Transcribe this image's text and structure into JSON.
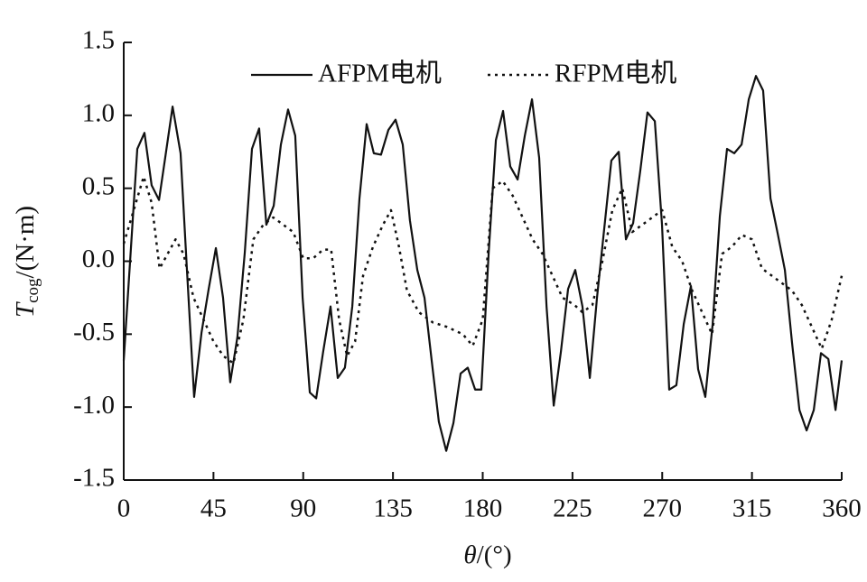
{
  "chart_data": {
    "type": "line",
    "xlabel": {
      "symbol": "θ",
      "unit": "/(°)"
    },
    "ylabel": {
      "symbol": "T",
      "sub": "cog",
      "unit": "/(N·m)"
    },
    "xlim": [
      0,
      360
    ],
    "xticks": [
      0,
      45,
      90,
      135,
      180,
      225,
      270,
      315,
      360
    ],
    "ylim": [
      -1.5,
      1.5
    ],
    "yticks": [
      -1.5,
      {
        "value": -1,
        "label": "-1.0"
      },
      -0.5,
      {
        "value": 0,
        "label": "0.0"
      },
      0.5,
      {
        "value": 1,
        "label": "1.0"
      },
      1.5
    ],
    "legend": "top",
    "series": [
      {
        "name": "AFPM电机",
        "color": "#111111",
        "dash": "solid",
        "x": [
          0,
          6.8,
          10.4,
          14,
          17.7,
          20.8,
          24.5,
          28.5,
          31.7,
          35.3,
          39,
          42.6,
          46.2,
          49.8,
          53.4,
          57,
          60.7,
          64.3,
          67.9,
          71.5,
          75.2,
          78.8,
          82.4,
          86,
          89.7,
          93.3,
          96.5,
          100,
          103.7,
          107.3,
          110.9,
          114.6,
          118.2,
          121.8,
          125.4,
          129,
          132.7,
          136.3,
          139.9,
          143.5,
          147.2,
          150.8,
          154.4,
          158,
          161.7,
          165.3,
          168.9,
          172.5,
          176.2,
          179.3,
          183,
          186.6,
          190.2,
          193.8,
          197.5,
          201.1,
          204.7,
          208.3,
          212,
          215.6,
          219.2,
          222.8,
          226.4,
          230,
          233.7,
          237.3,
          240.9,
          244.5,
          248.2,
          251.8,
          255.4,
          259,
          262.6,
          266.3,
          269.9,
          273.5,
          277.1,
          280.8,
          284.4,
          288,
          291.6,
          295.3,
          298.9,
          302.5,
          306.1,
          309.8,
          313.4,
          317,
          320.6,
          324.3,
          327.9,
          331.5,
          335.1,
          338.8,
          342.4,
          346,
          349.6,
          353.3,
          356.9,
          360
        ],
        "values": [
          -0.68,
          0.77,
          0.88,
          0.52,
          0.42,
          0.71,
          1.06,
          0.74,
          -0.06,
          -0.93,
          -0.49,
          -0.19,
          0.09,
          -0.25,
          -0.83,
          -0.52,
          0.06,
          0.77,
          0.91,
          0.25,
          0.38,
          0.8,
          1.04,
          0.86,
          -0.25,
          -0.9,
          -0.94,
          -0.62,
          -0.31,
          -0.8,
          -0.73,
          -0.31,
          0.43,
          0.94,
          0.74,
          0.73,
          0.9,
          0.97,
          0.8,
          0.28,
          -0.06,
          -0.25,
          -0.68,
          -1.1,
          -1.3,
          -1.11,
          -0.77,
          -0.73,
          -0.88,
          -0.88,
          0.06,
          0.83,
          1.03,
          0.65,
          0.56,
          0.86,
          1.11,
          0.71,
          -0.31,
          -0.99,
          -0.62,
          -0.19,
          -0.06,
          -0.31,
          -0.8,
          -0.25,
          0.22,
          0.69,
          0.75,
          0.15,
          0.26,
          0.62,
          1.02,
          0.96,
          0.25,
          -0.88,
          -0.85,
          -0.43,
          -0.17,
          -0.74,
          -0.93,
          -0.43,
          0.31,
          0.77,
          0.74,
          0.8,
          1.11,
          1.27,
          1.17,
          0.43,
          0.19,
          -0.06,
          -0.56,
          -1.02,
          -1.16,
          -1.02,
          -0.63,
          -0.67,
          -1.02,
          -0.68
        ]
      },
      {
        "name": "RFPM电机",
        "color": "#111111",
        "dash": "dotted",
        "x": [
          0,
          5,
          10,
          14,
          18,
          22,
          26,
          30,
          35,
          40,
          45,
          50,
          55,
          60,
          65,
          70,
          75,
          80,
          85,
          90,
          95,
          100,
          104,
          108,
          112,
          116,
          120,
          125,
          130,
          134,
          138,
          142,
          148,
          155,
          162,
          170,
          175,
          180,
          185,
          190,
          195,
          200,
          205,
          210,
          215,
          220,
          226,
          230,
          235,
          240,
          245,
          250,
          255,
          260,
          265,
          270,
          275,
          280,
          285,
          290,
          295,
          300,
          305,
          310,
          315,
          320,
          325,
          330,
          335,
          340,
          345,
          350,
          355,
          360
        ],
        "values": [
          0.12,
          0.35,
          0.58,
          0.4,
          -0.05,
          0.05,
          0.15,
          0.05,
          -0.25,
          -0.4,
          -0.55,
          -0.65,
          -0.7,
          -0.4,
          0.15,
          0.25,
          0.3,
          0.25,
          0.2,
          0.02,
          0.02,
          0.08,
          0.08,
          -0.4,
          -0.65,
          -0.55,
          -0.1,
          0.1,
          0.25,
          0.35,
          0.1,
          -0.2,
          -0.35,
          -0.42,
          -0.45,
          -0.5,
          -0.58,
          -0.4,
          0.5,
          0.55,
          0.45,
          0.3,
          0.15,
          0.05,
          -0.1,
          -0.25,
          -0.3,
          -0.35,
          -0.3,
          0,
          0.35,
          0.5,
          0.2,
          0.25,
          0.3,
          0.35,
          0.1,
          0,
          -0.2,
          -0.35,
          -0.5,
          0.05,
          0.1,
          0.18,
          0.15,
          -0.05,
          -0.1,
          -0.15,
          -0.2,
          -0.3,
          -0.45,
          -0.6,
          -0.4,
          -0.1
        ]
      }
    ]
  }
}
